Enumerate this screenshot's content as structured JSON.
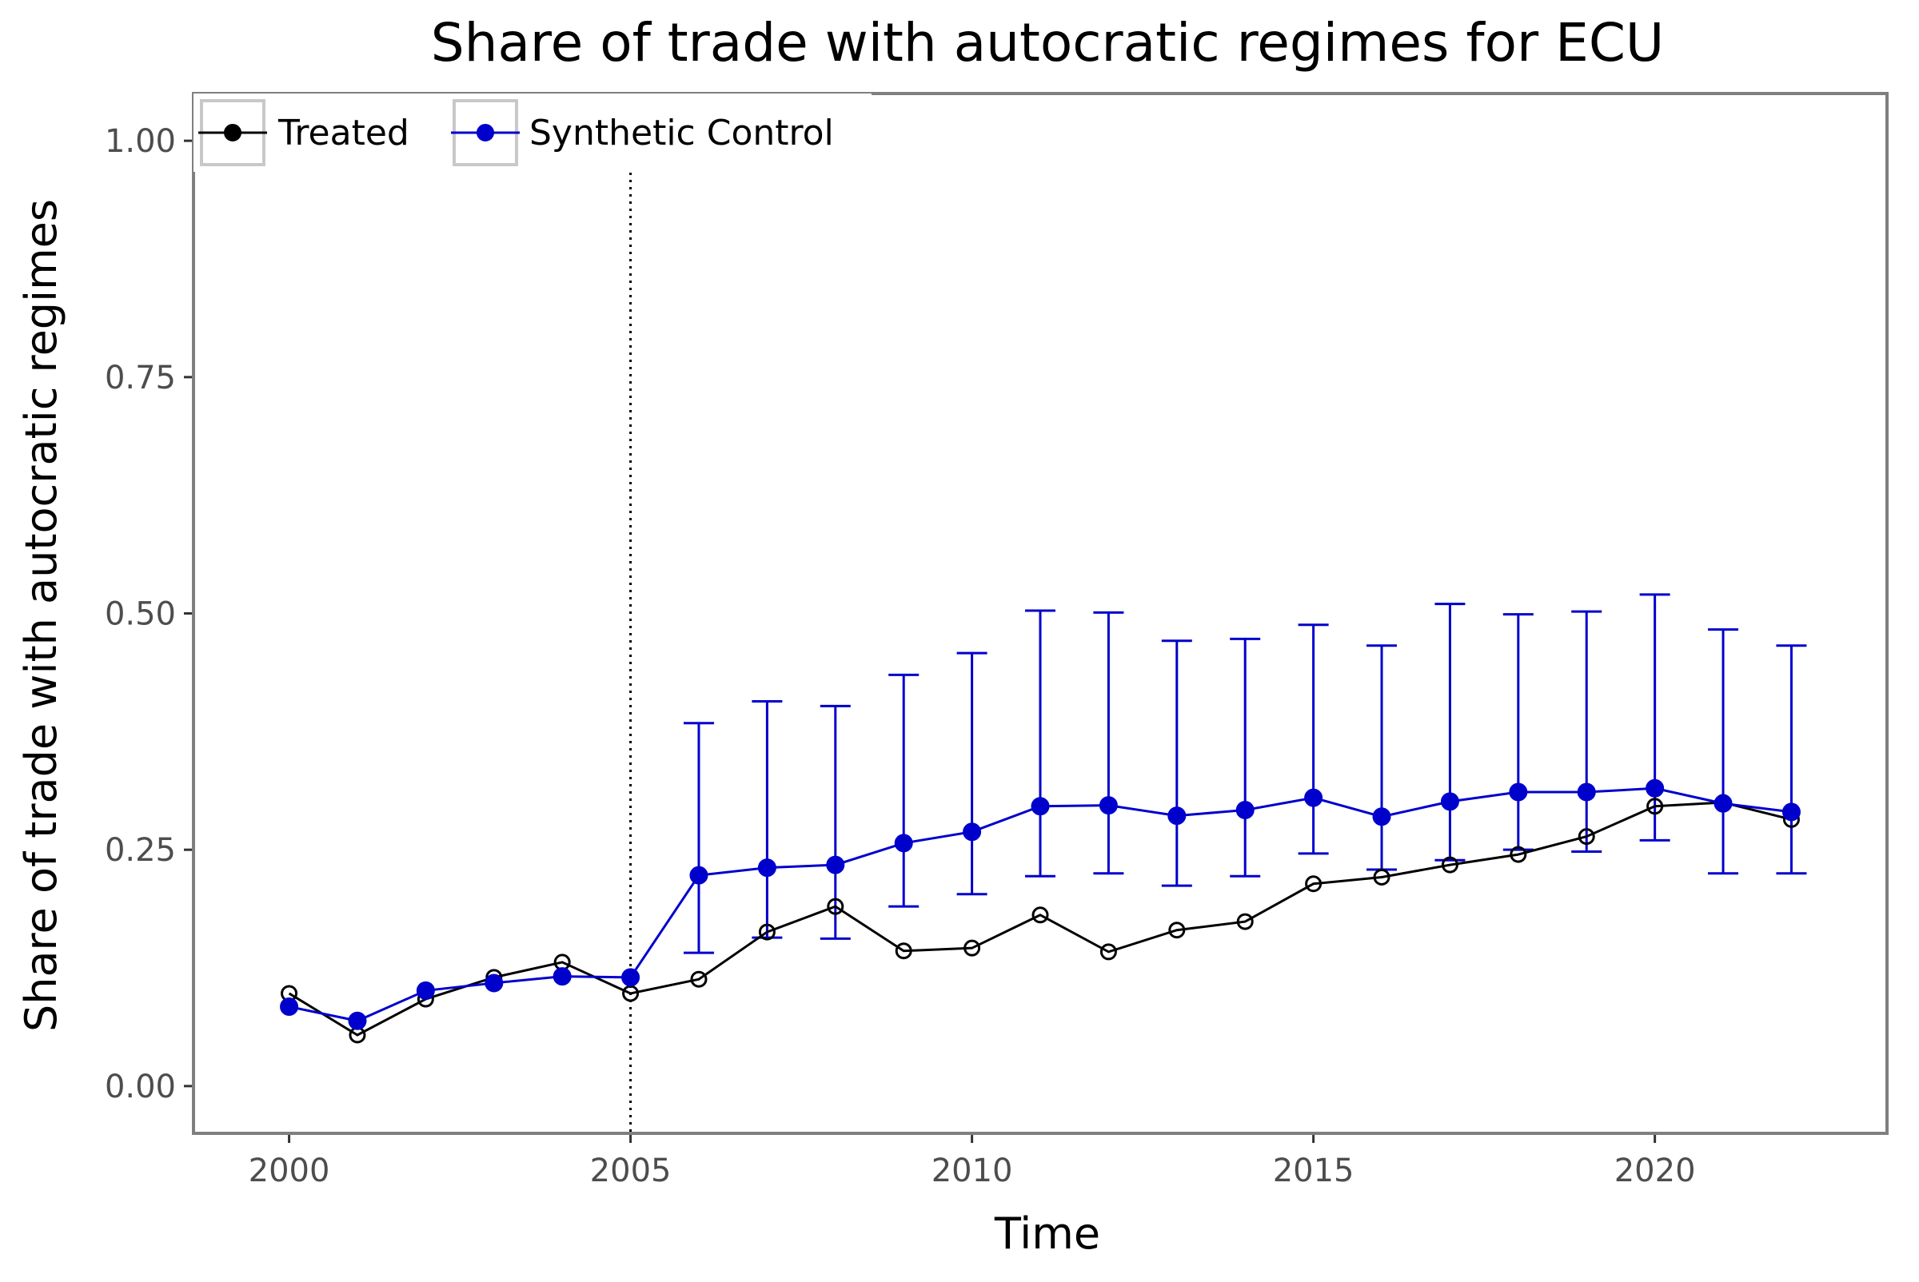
{
  "chart_data": {
    "type": "line",
    "title": "Share of trade with autocratic regimes for ECU",
    "xlabel": "Time",
    "ylabel": "Share of trade with autocratic regimes",
    "xlim": [
      1998.6,
      2023.4
    ],
    "ylim": [
      -0.05,
      1.05
    ],
    "x_ticks": [
      2000,
      2005,
      2010,
      2015,
      2020
    ],
    "x_tick_labels": [
      "2000",
      "2005",
      "2010",
      "2015",
      "2020"
    ],
    "y_ticks": [
      0,
      0.25,
      0.5,
      0.75,
      1
    ],
    "y_tick_labels": [
      "0.00",
      "0.25",
      "0.50",
      "0.75",
      "1.00"
    ],
    "vline": {
      "x": 2005,
      "style": "dotted",
      "color": "#000000"
    },
    "grid": false,
    "legend_position": "top-left",
    "x": [
      2000,
      2001,
      2002,
      2003,
      2004,
      2005,
      2006,
      2007,
      2008,
      2009,
      2010,
      2011,
      2012,
      2013,
      2014,
      2015,
      2016,
      2017,
      2018,
      2019,
      2020,
      2021,
      2022
    ],
    "series": [
      {
        "name": "Treated",
        "color": "#000000",
        "marker": "open-circle",
        "values": [
          0.098,
          0.054,
          0.092,
          0.115,
          0.131,
          0.098,
          0.113,
          0.163,
          0.19,
          0.143,
          0.146,
          0.181,
          0.142,
          0.165,
          0.174,
          0.214,
          0.221,
          0.234,
          0.245,
          0.264,
          0.296,
          0.3,
          0.282
        ]
      },
      {
        "name": "Synthetic Control",
        "color": "#0000cd",
        "marker": "filled-circle",
        "values": [
          0.084,
          0.069,
          0.101,
          0.109,
          0.116,
          0.115,
          0.223,
          0.231,
          0.234,
          0.257,
          0.269,
          0.296,
          0.297,
          0.286,
          0.292,
          0.305,
          0.285,
          0.301,
          0.311,
          0.311,
          0.315,
          0.299,
          0.29
        ],
        "error_bars": {
          "x": [
            2006,
            2007,
            2008,
            2009,
            2010,
            2011,
            2012,
            2013,
            2014,
            2015,
            2016,
            2017,
            2018,
            2019,
            2020,
            2021,
            2022
          ],
          "lower": [
            0.141,
            0.157,
            0.156,
            0.19,
            0.203,
            0.222,
            0.225,
            0.212,
            0.222,
            0.246,
            0.229,
            0.239,
            0.25,
            0.248,
            0.26,
            0.225,
            0.225
          ],
          "upper": [
            0.384,
            0.407,
            0.402,
            0.435,
            0.458,
            0.503,
            0.501,
            0.471,
            0.473,
            0.488,
            0.466,
            0.51,
            0.499,
            0.502,
            0.52,
            0.483,
            0.466
          ]
        }
      }
    ]
  }
}
